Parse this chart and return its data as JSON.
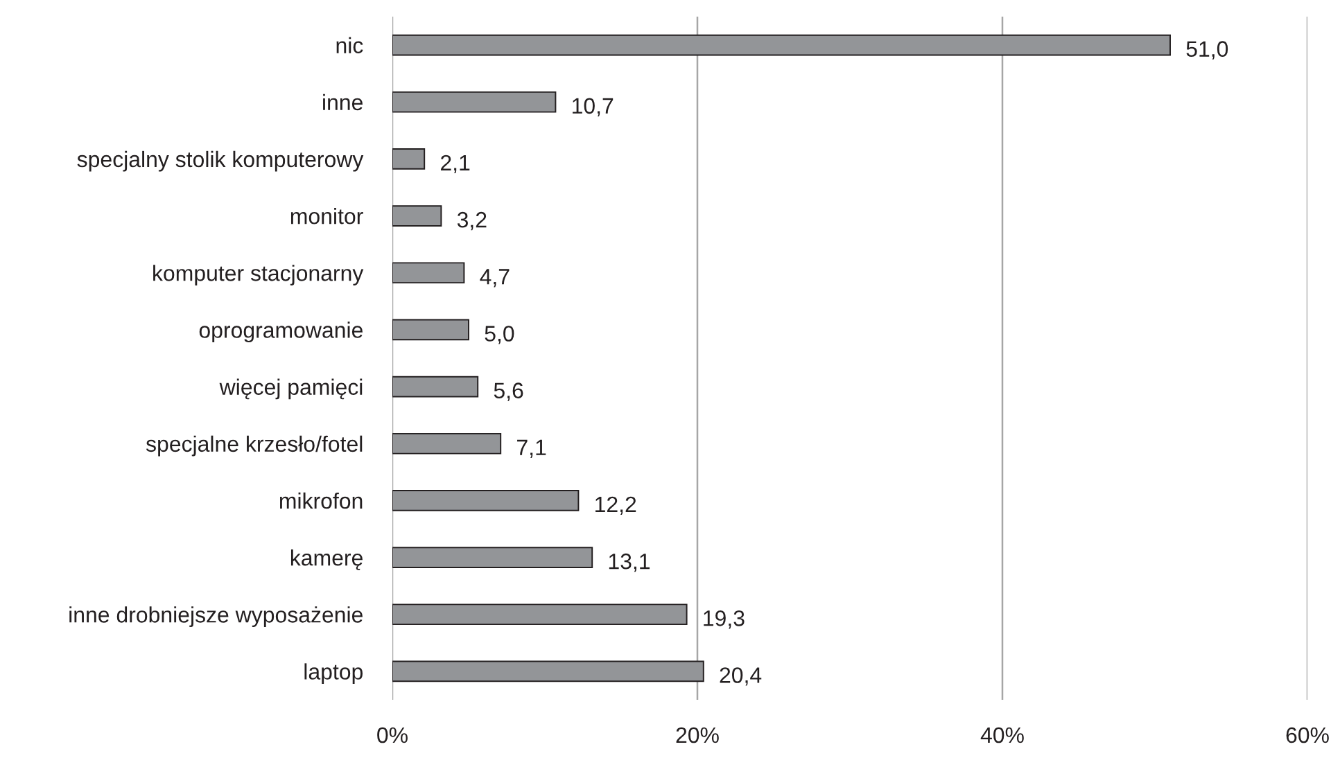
{
  "chart_data": {
    "type": "bar",
    "orientation": "horizontal",
    "categories": [
      "nic",
      "inne",
      "specjalny stolik komputerowy",
      "monitor",
      "komputer stacjonarny",
      "oprogramowanie",
      "więcej pamięci",
      "specjalne krzesło/fotel",
      "mikrofon",
      "kamerę",
      "inne drobniejsze wyposażenie",
      "laptop"
    ],
    "values": [
      51.0,
      10.7,
      2.1,
      3.2,
      4.7,
      5.0,
      5.6,
      7.1,
      12.2,
      13.1,
      19.3,
      20.4
    ],
    "value_labels": [
      "51,0",
      "10,7",
      "2,1",
      "3,2",
      "4,7",
      "5,0",
      "5,6",
      "7,1",
      "12,2",
      "13,1",
      "19,3",
      "20,4"
    ],
    "color": "#939598",
    "xlim": [
      0,
      60
    ],
    "xticks": [
      {
        "value": 0,
        "label": "0%"
      },
      {
        "value": 20,
        "label": "20%"
      },
      {
        "value": 40,
        "label": "40%"
      },
      {
        "value": 60,
        "label": "60%"
      }
    ],
    "grid": "x"
  }
}
